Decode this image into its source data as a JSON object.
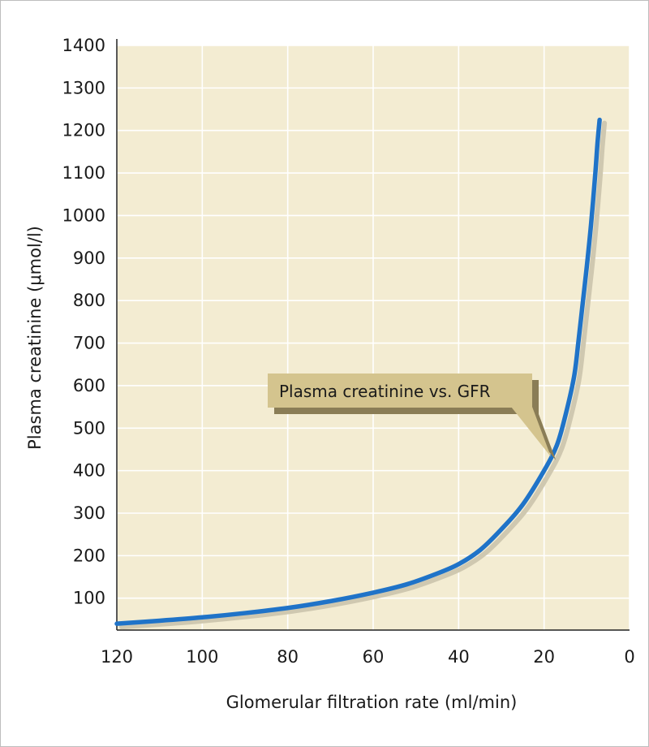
{
  "chart_data": {
    "type": "line",
    "xlabel": "Glomerular filtration rate (ml/min)",
    "ylabel": "Plasma creatinine (μmol/l)",
    "xlim": [
      120,
      0
    ],
    "ylim": [
      25,
      1400
    ],
    "x_ticks": [
      120,
      100,
      80,
      60,
      40,
      20,
      0
    ],
    "y_ticks": [
      100,
      200,
      300,
      400,
      500,
      600,
      700,
      800,
      900,
      1000,
      1100,
      1200,
      1300,
      1400
    ],
    "grid": true,
    "series": [
      {
        "color": "#1f73c8",
        "x": [
          120,
          110,
          100,
          90,
          80,
          70,
          60,
          52,
          45,
          40,
          35,
          30,
          25,
          20,
          17,
          15,
          13,
          12,
          11,
          10,
          9,
          8,
          7.5,
          7
        ],
        "y": [
          40,
          47,
          55,
          65,
          77,
          93,
          113,
          133,
          158,
          180,
          213,
          262,
          320,
          400,
          460,
          530,
          620,
          700,
          790,
          880,
          980,
          1100,
          1170,
          1225
        ]
      }
    ],
    "annotation": {
      "text": "Plasma creatinine vs. GFR",
      "box_color": "#d4c48e",
      "shadow_color": "#8a7d56",
      "points_to": {
        "x": 18,
        "y": 440
      }
    }
  },
  "colors": {
    "plot_background": "#f3ecd2",
    "grid": "#ffffff",
    "axis": "#222222",
    "frame": "#bdbdbd"
  }
}
